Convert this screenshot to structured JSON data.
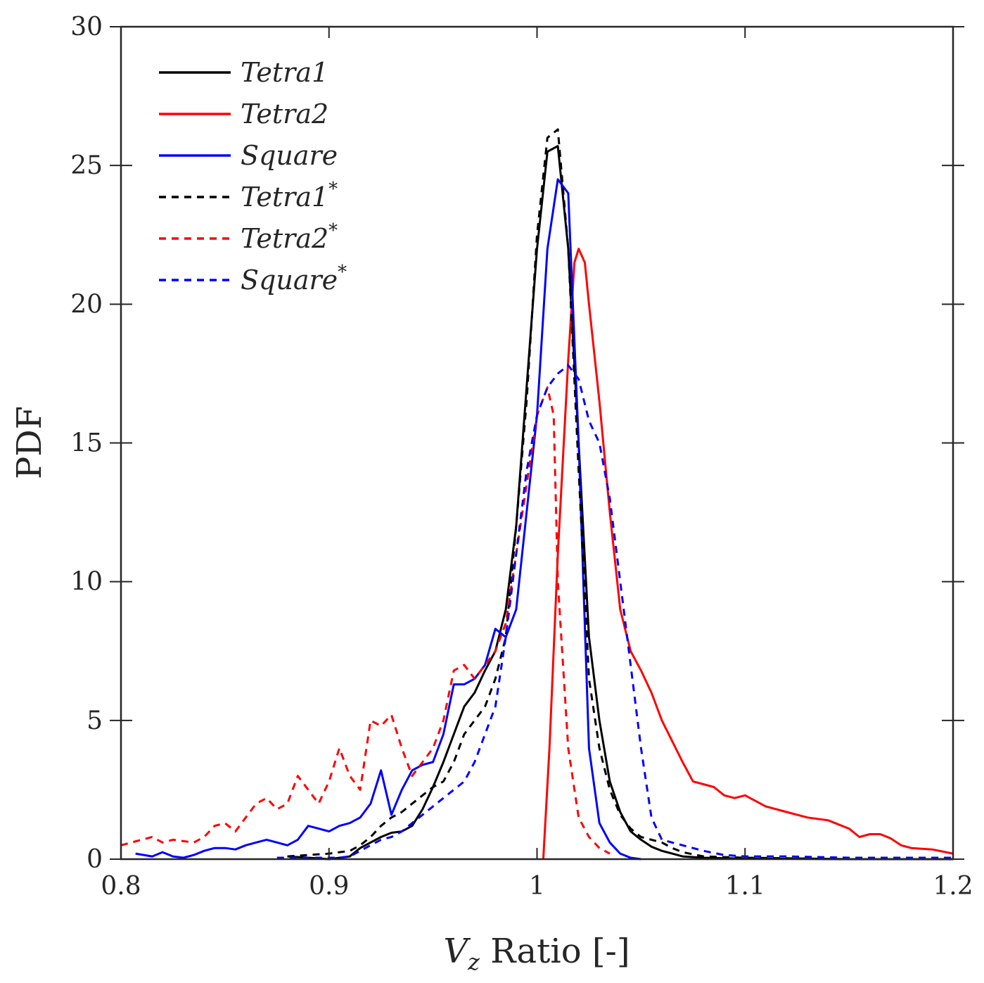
{
  "chart_data": {
    "type": "line",
    "title": "",
    "xlabel": "V_z Ratio [-]",
    "xlabel_main": "V",
    "xlabel_sub": "z",
    "xlabel_rest": " Ratio [-]",
    "ylabel": "PDF",
    "xlim": [
      0.8,
      1.2
    ],
    "ylim": [
      0,
      30
    ],
    "x_ticks": [
      0.8,
      0.9,
      1.0,
      1.1,
      1.2
    ],
    "x_tick_labels": [
      "0.8",
      "0.9",
      "1",
      "1.1",
      "1.2"
    ],
    "y_ticks": [
      0,
      5,
      10,
      15,
      20,
      25,
      30
    ],
    "y_tick_labels": [
      "0",
      "5",
      "10",
      "15",
      "20",
      "25",
      "30"
    ],
    "grid": false,
    "legend_position": "top-left",
    "series": [
      {
        "name": "Tetra1",
        "label": "Tetra1",
        "sup": "",
        "color": "#000000",
        "dash": "solid",
        "x": [
          0.88,
          0.89,
          0.9,
          0.91,
          0.915,
          0.92,
          0.925,
          0.93,
          0.935,
          0.94,
          0.945,
          0.95,
          0.955,
          0.96,
          0.965,
          0.97,
          0.975,
          0.98,
          0.985,
          0.99,
          0.995,
          1.0,
          1.005,
          1.01,
          1.015,
          1.02,
          1.025,
          1.03,
          1.035,
          1.04,
          1.045,
          1.05,
          1.055,
          1.06,
          1.065,
          1.07,
          1.08,
          1.1,
          1.15,
          1.2
        ],
        "y": [
          0.1,
          0.05,
          0.0,
          0.1,
          0.4,
          0.6,
          0.8,
          0.95,
          1.0,
          1.2,
          1.8,
          2.6,
          3.5,
          4.5,
          5.5,
          6.0,
          6.8,
          7.5,
          9.0,
          12.0,
          17.0,
          22.0,
          25.5,
          25.7,
          22.0,
          15.0,
          8.0,
          5.0,
          2.8,
          1.7,
          1.0,
          0.7,
          0.45,
          0.3,
          0.2,
          0.1,
          0.05,
          0.02,
          0.0,
          0.0
        ]
      },
      {
        "name": "Tetra2",
        "label": "Tetra2",
        "sup": "",
        "color": "#ff0000",
        "dash": "solid",
        "x": [
          1.003,
          1.006,
          1.01,
          1.015,
          1.018,
          1.02,
          1.023,
          1.025,
          1.03,
          1.035,
          1.04,
          1.045,
          1.05,
          1.055,
          1.06,
          1.07,
          1.075,
          1.08,
          1.085,
          1.09,
          1.095,
          1.1,
          1.105,
          1.11,
          1.12,
          1.13,
          1.14,
          1.15,
          1.155,
          1.16,
          1.165,
          1.17,
          1.175,
          1.18,
          1.19,
          1.2
        ],
        "y": [
          0.0,
          4.0,
          11.0,
          18.0,
          21.5,
          22.0,
          21.5,
          20.0,
          16.5,
          12.5,
          9.0,
          7.5,
          6.8,
          6.0,
          5.0,
          3.5,
          2.8,
          2.7,
          2.6,
          2.3,
          2.2,
          2.3,
          2.1,
          1.9,
          1.7,
          1.5,
          1.4,
          1.1,
          0.8,
          0.9,
          0.9,
          0.75,
          0.5,
          0.4,
          0.35,
          0.2
        ]
      },
      {
        "name": "Square",
        "label": "Square",
        "sup": "",
        "color": "#0000ff",
        "dash": "solid",
        "x": [
          0.807,
          0.815,
          0.82,
          0.825,
          0.83,
          0.835,
          0.84,
          0.845,
          0.85,
          0.855,
          0.86,
          0.865,
          0.87,
          0.875,
          0.88,
          0.885,
          0.89,
          0.895,
          0.9,
          0.905,
          0.91,
          0.915,
          0.92,
          0.925,
          0.93,
          0.935,
          0.94,
          0.945,
          0.95,
          0.955,
          0.96,
          0.965,
          0.97,
          0.975,
          0.98,
          0.985,
          0.99,
          0.995,
          1.0,
          1.005,
          1.01,
          1.015,
          1.02,
          1.025,
          1.03,
          1.035,
          1.04,
          1.045,
          1.05
        ],
        "y": [
          0.2,
          0.1,
          0.25,
          0.1,
          0.05,
          0.15,
          0.3,
          0.4,
          0.4,
          0.35,
          0.5,
          0.6,
          0.7,
          0.6,
          0.5,
          0.7,
          1.2,
          1.1,
          1.0,
          1.2,
          1.3,
          1.5,
          2.0,
          3.2,
          1.6,
          2.5,
          3.2,
          3.4,
          3.5,
          4.5,
          6.3,
          6.3,
          6.5,
          7.0,
          8.3,
          8.0,
          9.0,
          12.5,
          16.0,
          22.0,
          24.5,
          24.0,
          15.0,
          4.0,
          1.3,
          0.6,
          0.2,
          0.05,
          0.0
        ]
      },
      {
        "name": "Tetra1*",
        "label": "Tetra1",
        "sup": "*",
        "color": "#000000",
        "dash": "dashed",
        "x": [
          0.88,
          0.89,
          0.9,
          0.91,
          0.915,
          0.92,
          0.925,
          0.93,
          0.935,
          0.94,
          0.945,
          0.95,
          0.955,
          0.96,
          0.965,
          0.97,
          0.975,
          0.98,
          0.985,
          0.99,
          0.995,
          1.0,
          1.005,
          1.01,
          1.015,
          1.02,
          1.025,
          1.03,
          1.035,
          1.04,
          1.045,
          1.05,
          1.055,
          1.06,
          1.065,
          1.07,
          1.08,
          1.1,
          1.15,
          1.2
        ],
        "y": [
          0.1,
          0.15,
          0.2,
          0.3,
          0.5,
          0.8,
          1.2,
          1.5,
          1.7,
          2.0,
          2.3,
          2.6,
          2.8,
          3.5,
          4.5,
          5.0,
          5.5,
          6.5,
          8.0,
          12.0,
          16.5,
          22.5,
          26.0,
          26.3,
          22.0,
          14.0,
          6.5,
          4.0,
          2.5,
          1.6,
          1.1,
          0.8,
          0.7,
          0.6,
          0.4,
          0.25,
          0.1,
          0.05,
          0.0,
          0.0
        ]
      },
      {
        "name": "Tetra2*",
        "label": "Tetra2",
        "sup": "*",
        "color": "#ff0000",
        "dash": "dashed",
        "x": [
          0.8,
          0.805,
          0.81,
          0.815,
          0.82,
          0.825,
          0.83,
          0.835,
          0.84,
          0.845,
          0.85,
          0.855,
          0.86,
          0.865,
          0.87,
          0.875,
          0.88,
          0.885,
          0.89,
          0.895,
          0.9,
          0.905,
          0.91,
          0.915,
          0.92,
          0.925,
          0.93,
          0.935,
          0.94,
          0.945,
          0.95,
          0.955,
          0.96,
          0.965,
          0.97,
          0.975,
          0.98,
          0.985,
          0.99,
          0.995,
          1.0,
          1.005,
          1.008,
          1.01,
          1.015,
          1.02,
          1.025,
          1.03,
          1.035
        ],
        "y": [
          0.5,
          0.6,
          0.7,
          0.8,
          0.6,
          0.7,
          0.65,
          0.6,
          0.8,
          1.2,
          1.3,
          1.0,
          1.5,
          2.0,
          2.2,
          1.8,
          2.0,
          3.0,
          2.5,
          2.0,
          2.8,
          4.0,
          3.0,
          2.5,
          5.0,
          4.8,
          5.2,
          4.0,
          3.0,
          3.5,
          4.0,
          5.0,
          6.8,
          7.0,
          6.5,
          7.0,
          7.5,
          8.5,
          11.0,
          13.5,
          16.0,
          17.0,
          16.0,
          10.0,
          4.0,
          1.5,
          0.8,
          0.4,
          0.2
        ]
      },
      {
        "name": "Square*",
        "label": "Square",
        "sup": "*",
        "color": "#0000ff",
        "dash": "dashed",
        "x": [
          0.875,
          0.88,
          0.89,
          0.9,
          0.905,
          0.91,
          0.915,
          0.92,
          0.925,
          0.93,
          0.935,
          0.94,
          0.945,
          0.95,
          0.955,
          0.96,
          0.965,
          0.97,
          0.975,
          0.98,
          0.985,
          0.99,
          0.995,
          1.0,
          1.005,
          1.01,
          1.015,
          1.02,
          1.025,
          1.03,
          1.035,
          1.04,
          1.045,
          1.05,
          1.055,
          1.06,
          1.07,
          1.08,
          1.09,
          1.1,
          1.12,
          1.15,
          1.2
        ],
        "y": [
          0.05,
          0.05,
          0.05,
          0.05,
          0.05,
          0.1,
          0.3,
          0.5,
          0.7,
          0.8,
          1.0,
          1.3,
          1.6,
          1.9,
          2.2,
          2.5,
          2.8,
          3.5,
          4.5,
          5.5,
          8.0,
          11.0,
          14.0,
          16.0,
          17.0,
          17.5,
          17.8,
          17.3,
          15.8,
          15.0,
          13.0,
          10.0,
          7.0,
          4.0,
          1.5,
          0.7,
          0.5,
          0.3,
          0.15,
          0.1,
          0.1,
          0.05,
          0.05
        ]
      }
    ]
  }
}
